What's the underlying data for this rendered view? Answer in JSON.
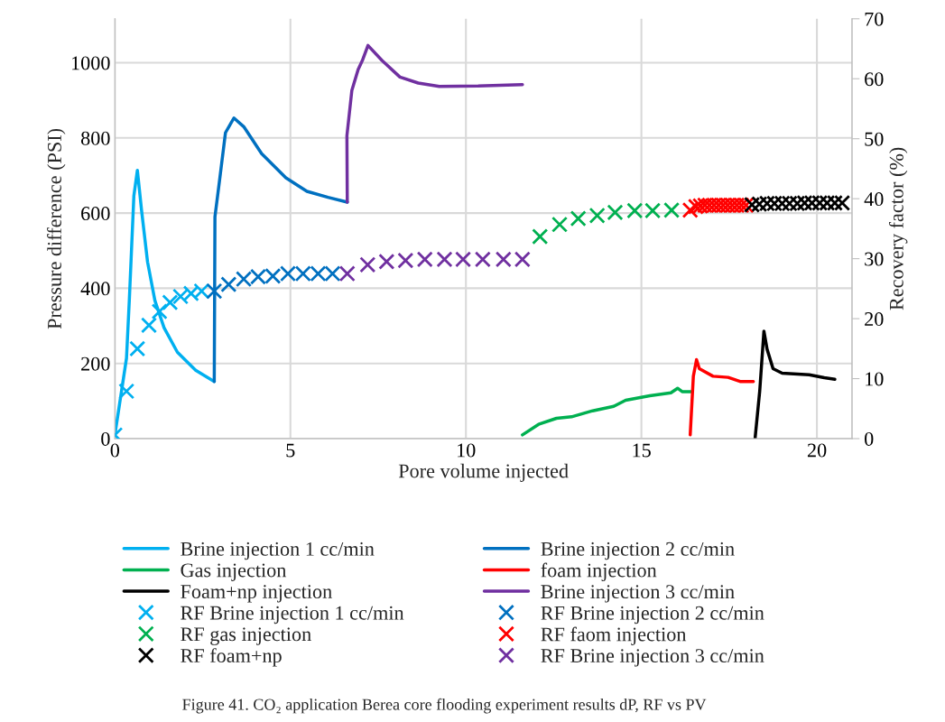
{
  "chart_data": {
    "type": "line",
    "xlabel": "Pore volume injected",
    "ylabel": "Pressure difference (PSI)",
    "y2label": "Recovery factor (%)",
    "xlim": [
      0,
      21
    ],
    "xticks": [
      0,
      5,
      10,
      15,
      20
    ],
    "ylim": [
      0,
      1117
    ],
    "yticks": [
      0,
      200,
      400,
      600,
      800,
      1000
    ],
    "y2lim": [
      0,
      70
    ],
    "y2ticks": [
      0,
      10,
      20,
      30,
      40,
      50,
      60,
      70
    ],
    "grid": true,
    "legend": "bottom",
    "line_style": "solid",
    "annotations": [
      "Figure 41. CO₂ application Berea core flooding experiment results dP, RF vs PV"
    ],
    "series": [
      {
        "name": "Brine injection 1 cc/min",
        "axis": "y",
        "marker": "none",
        "color": "#00b0f0",
        "x": [
          0,
          0.33,
          0.41,
          0.54,
          0.64,
          0.76,
          0.93,
          1.14,
          1.4,
          1.78,
          2.3,
          2.83
        ],
        "values": [
          10,
          214,
          367,
          646,
          714,
          607,
          470,
          367,
          295,
          230,
          182,
          152
        ]
      },
      {
        "name": "Brine injection 2 cc/min",
        "axis": "y",
        "marker": "none",
        "color": "#0070c0",
        "x": [
          2.83,
          2.85,
          2.98,
          3.15,
          3.39,
          3.67,
          4.18,
          4.87,
          5.47,
          6.07,
          6.62
        ],
        "values": [
          152,
          590,
          686,
          814,
          853,
          830,
          758,
          694,
          658,
          642,
          629
        ]
      },
      {
        "name": "Gas injection",
        "axis": "y",
        "marker": "none",
        "color": "#00b050",
        "x": [
          11.61,
          12.07,
          12.58,
          13.01,
          13.61,
          14.21,
          14.55,
          15.24,
          15.84,
          16.03,
          16.16,
          16.41
        ],
        "values": [
          10,
          38,
          54,
          58,
          74,
          86,
          102,
          114,
          122,
          134,
          125,
          125
        ]
      },
      {
        "name": "foam injection",
        "axis": "y",
        "marker": "none",
        "color": "#ff0000",
        "x": [
          16.39,
          16.48,
          16.57,
          16.65,
          17.04,
          17.47,
          17.81,
          18.19
        ],
        "values": [
          10,
          166,
          210,
          186,
          166,
          163,
          152,
          152
        ]
      },
      {
        "name": "Foam+np injection",
        "axis": "y",
        "marker": "none",
        "color": "#000000",
        "x": [
          18.24,
          18.37,
          18.49,
          18.58,
          18.75,
          19.01,
          19.78,
          20.21,
          20.51
        ],
        "values": [
          2,
          126,
          286,
          238,
          186,
          174,
          170,
          162,
          158
        ]
      },
      {
        "name": "Brine injection 3 cc/min",
        "axis": "y",
        "marker": "none",
        "color": "#7030a0",
        "x": [
          6.62,
          6.61,
          6.75,
          6.93,
          7.05,
          7.21,
          7.61,
          8.12,
          8.64,
          9.24,
          10.35,
          11.61
        ],
        "values": [
          629,
          806,
          926,
          982,
          1006,
          1046,
          1006,
          962,
          946,
          937,
          938,
          942
        ]
      },
      {
        "name": "RF Brine injection 1 cc/min",
        "type": "scatter",
        "axis": "y2",
        "marker": "cross",
        "color": "#00b0f0",
        "x": [
          0,
          0.33,
          0.64,
          0.97,
          1.27,
          1.57,
          1.87,
          2.17,
          2.47
        ],
        "values": [
          0.6,
          7.9,
          15.0,
          18.9,
          21.2,
          22.7,
          23.7,
          24.2,
          24.6
        ]
      },
      {
        "name": "RF Brine injection 2 cc/min",
        "type": "scatter",
        "axis": "y2",
        "marker": "cross",
        "color": "#0070c0",
        "x": [
          2.83,
          3.24,
          3.67,
          4.08,
          4.5,
          4.93,
          5.36,
          5.79,
          6.2
        ],
        "values": [
          24.6,
          25.7,
          26.6,
          27.0,
          27.1,
          27.5,
          27.5,
          27.5,
          27.5
        ]
      },
      {
        "name": "RF gas injection",
        "type": "scatter",
        "axis": "y2",
        "marker": "cross",
        "color": "#00b050",
        "x": [
          12.11,
          12.67,
          13.2,
          13.74,
          14.25,
          14.81,
          15.32,
          15.86
        ],
        "values": [
          33.7,
          35.7,
          36.7,
          37.2,
          37.7,
          38.0,
          38.0,
          38.1
        ]
      },
      {
        "name": "RF faom injection",
        "type": "scatter",
        "axis": "y2",
        "marker": "cross",
        "color": "#ff0000",
        "x": [
          16.39,
          16.55,
          16.68,
          16.81,
          16.94,
          17.07,
          17.2,
          17.33,
          17.46,
          17.59,
          17.72,
          17.85,
          17.98
        ],
        "values": [
          38.1,
          38.7,
          38.8,
          38.9,
          38.9,
          38.9,
          38.9,
          38.9,
          38.9,
          38.9,
          38.9,
          38.9,
          38.9
        ]
      },
      {
        "name": "RF foam+np",
        "type": "scatter",
        "axis": "y2",
        "marker": "cross",
        "color": "#000000",
        "x": [
          18.15,
          18.36,
          18.58,
          18.79,
          19.01,
          19.22,
          19.44,
          19.65,
          19.86,
          20.08,
          20.29,
          20.51,
          20.72
        ],
        "values": [
          39.0,
          39.1,
          39.2,
          39.2,
          39.2,
          39.2,
          39.2,
          39.3,
          39.3,
          39.3,
          39.3,
          39.3,
          39.3
        ]
      },
      {
        "name": "RF Brine injection 3 cc/min",
        "type": "scatter",
        "axis": "y2",
        "marker": "cross",
        "color": "#7030a0",
        "x": [
          6.62,
          7.2,
          7.74,
          8.28,
          8.83,
          9.39,
          9.92,
          10.48,
          11.07,
          11.61
        ],
        "values": [
          27.5,
          29.0,
          29.5,
          29.7,
          29.9,
          29.9,
          29.9,
          29.9,
          29.9,
          29.9
        ]
      }
    ]
  }
}
